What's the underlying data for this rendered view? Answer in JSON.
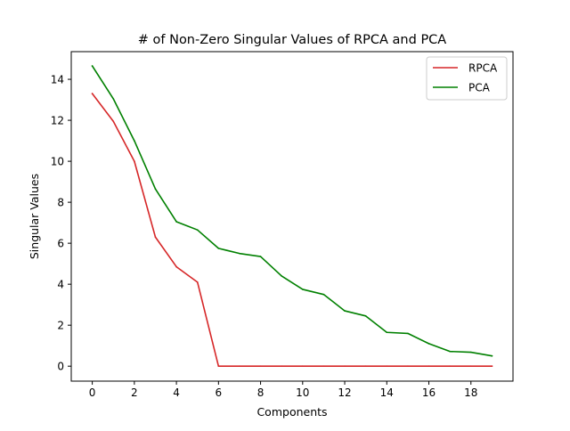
{
  "chart_data": {
    "type": "line",
    "title": "# of Non-Zero Singular Values of RPCA and PCA",
    "xlabel": "Components",
    "ylabel": "Singular Values",
    "xlim": [
      -1,
      20
    ],
    "ylim": [
      -0.73,
      15.35
    ],
    "xticks": [
      0,
      2,
      4,
      6,
      8,
      10,
      12,
      14,
      16,
      18
    ],
    "yticks": [
      0,
      2,
      4,
      6,
      8,
      10,
      12,
      14
    ],
    "grid": false,
    "legend_position": "top-right",
    "x": [
      0,
      1,
      2,
      3,
      4,
      5,
      6,
      7,
      8,
      9,
      10,
      11,
      12,
      13,
      14,
      15,
      16,
      17,
      18,
      19
    ],
    "series": [
      {
        "name": "RPCA",
        "color": "#d62728",
        "values": [
          13.3,
          11.95,
          10.0,
          6.3,
          4.85,
          4.1,
          0.0,
          0.0,
          0.0,
          0.0,
          0.0,
          0.0,
          0.0,
          0.0,
          0.0,
          0.0,
          0.0,
          0.0,
          0.0,
          0.0
        ]
      },
      {
        "name": "PCA",
        "color": "#008000",
        "values": [
          14.65,
          13.05,
          11.0,
          8.65,
          7.05,
          6.65,
          5.75,
          5.5,
          5.35,
          4.4,
          3.75,
          3.5,
          2.7,
          2.45,
          1.65,
          1.6,
          1.1,
          0.72,
          0.68,
          0.5
        ]
      }
    ]
  }
}
